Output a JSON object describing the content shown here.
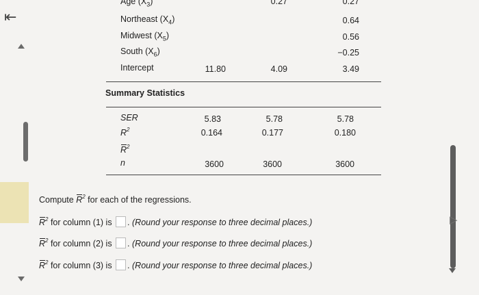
{
  "nav": {
    "back_icon": "⇤"
  },
  "table_top": {
    "rows": [
      {
        "label": "Age (X",
        "sub": "3",
        "suffix": ")",
        "col1": "",
        "col2": "0.27",
        "col3": "0.27"
      },
      {
        "label": "Northeast (X",
        "sub": "4",
        "suffix": ")",
        "col1": "",
        "col2": "",
        "col3": "0.64"
      },
      {
        "label": "Midwest (X",
        "sub": "5",
        "suffix": ")",
        "col1": "",
        "col2": "",
        "col3": "0.56"
      },
      {
        "label": "South (X",
        "sub": "6",
        "suffix": ")",
        "col1": "",
        "col2": "",
        "col3": "−0.25"
      },
      {
        "label": "Intercept",
        "sub": "",
        "suffix": "",
        "col1": "11.80",
        "col2": "4.09",
        "col3": "3.49"
      }
    ]
  },
  "summary": {
    "title": "Summary Statistics",
    "rows": [
      {
        "label": "SER",
        "col1": "5.83",
        "col2": "5.78",
        "col3": "5.78"
      },
      {
        "label": "R",
        "col1": "0.164",
        "col2": "0.177",
        "col3": "0.180"
      },
      {
        "label": "R",
        "col1": "",
        "col2": "",
        "col3": ""
      },
      {
        "label": "n",
        "col1": "3600",
        "col2": "3600",
        "col3": "3600"
      }
    ]
  },
  "question": {
    "prompt_pre": "Compute ",
    "prompt_post": " for each of the regressions.",
    "items": [
      {
        "label": " for column (1) is ",
        "hint": "(Round your response to three decimal places.)"
      },
      {
        "label": " for column (2) is ",
        "hint": "(Round your response to three decimal places.)"
      },
      {
        "label": " for column (3) is ",
        "hint": "(Round your response to three decimal places.)"
      }
    ],
    "symbol": "R",
    "sup": "2"
  }
}
